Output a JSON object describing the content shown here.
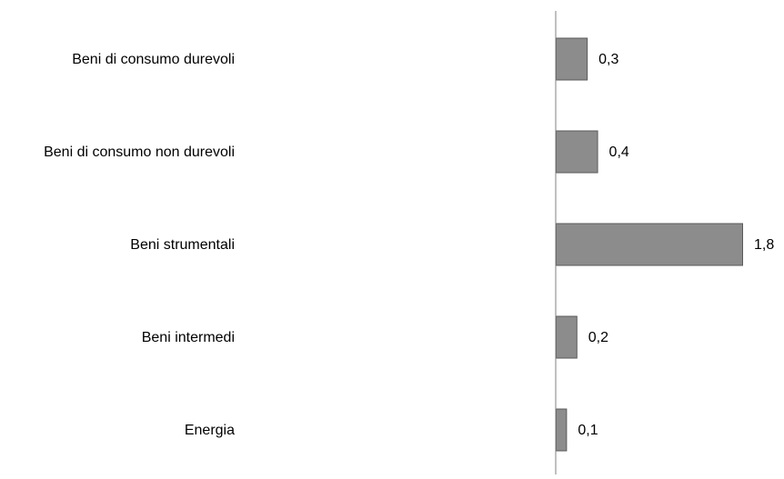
{
  "chart_data": {
    "type": "bar",
    "orientation": "horizontal",
    "categories": [
      "Beni di consumo durevoli",
      "Beni di consumo non durevoli",
      "Beni strumentali",
      "Beni intermedi",
      "Energia"
    ],
    "values": [
      0.3,
      0.4,
      1.8,
      0.2,
      0.1
    ],
    "value_labels": [
      "0,3",
      "0,4",
      "1,8",
      "0,2",
      "0,1"
    ],
    "title": "",
    "xlabel": "",
    "ylabel": "",
    "xlim": [
      0,
      1.8
    ],
    "grid": false,
    "legend": "none",
    "colors": {
      "bar_fill": "#8c8c8c",
      "bar_stroke": "#5a5a5a",
      "axis": "#808080"
    }
  }
}
